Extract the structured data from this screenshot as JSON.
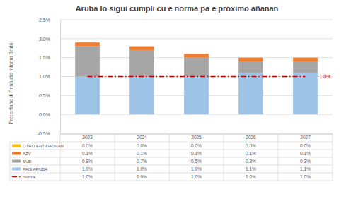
{
  "chart_data": {
    "type": "bar",
    "title": "Aruba lo sigui cumpli cu e norma pa e proximo añanan",
    "y_label": "Porcentahe di Producto Interno Bruto",
    "categories": [
      "2023",
      "2024",
      "2025",
      "2026",
      "2027"
    ],
    "stacked": true,
    "grid": true,
    "ylim": [
      -0.5,
      2.5
    ],
    "yticks": [
      {
        "value": -0.5,
        "label": "-0.5%"
      },
      {
        "value": 0,
        "label": "0.0%"
      },
      {
        "value": 0.5,
        "label": "0.5%"
      },
      {
        "value": 1,
        "label": "1.0%"
      },
      {
        "value": 1.5,
        "label": "1.5%"
      },
      {
        "value": 2,
        "label": "2.0%"
      },
      {
        "value": 2.5,
        "label": "2.5%"
      }
    ],
    "series": [
      {
        "name": "PAIS ARUBA",
        "type": "bar",
        "color": "#9dc3e6",
        "values": [
          1.0,
          1.0,
          1.0,
          1.1,
          1.1
        ],
        "value_labels": [
          "1.0%",
          "1.0%",
          "1.0%",
          "1.1%",
          "1.1%"
        ]
      },
      {
        "name": "SVB",
        "type": "bar",
        "color": "#a5a5a5",
        "values": [
          0.8,
          0.7,
          0.5,
          0.3,
          0.3
        ],
        "value_labels": [
          "0.8%",
          "0.7%",
          "0.5%",
          "0.3%",
          "0.3%"
        ]
      },
      {
        "name": "AZV",
        "type": "bar",
        "color": "#ed7d31",
        "values": [
          0.1,
          0.1,
          0.1,
          0.1,
          0.1
        ],
        "value_labels": [
          "0.1%",
          "0.1%",
          "0.1%",
          "0.1%",
          "0.1%"
        ]
      },
      {
        "name": "OTRO ENTIDADNAN",
        "type": "bar",
        "color": "#ffc000",
        "values": [
          0.0,
          0.0,
          0.0,
          0.0,
          0.0
        ],
        "value_labels": [
          "0.0%",
          "0.0%",
          "0.0%",
          "0.0%",
          "0.0%"
        ]
      },
      {
        "name": "Norma",
        "type": "line",
        "color": "#c00000",
        "line_style": "dashdot",
        "values": [
          1.0,
          1.0,
          1.0,
          1.0,
          1.0
        ],
        "value_labels": [
          "1.0%",
          "1.0%",
          "1.0%",
          "1.0%",
          "1.0%"
        ]
      }
    ]
  }
}
